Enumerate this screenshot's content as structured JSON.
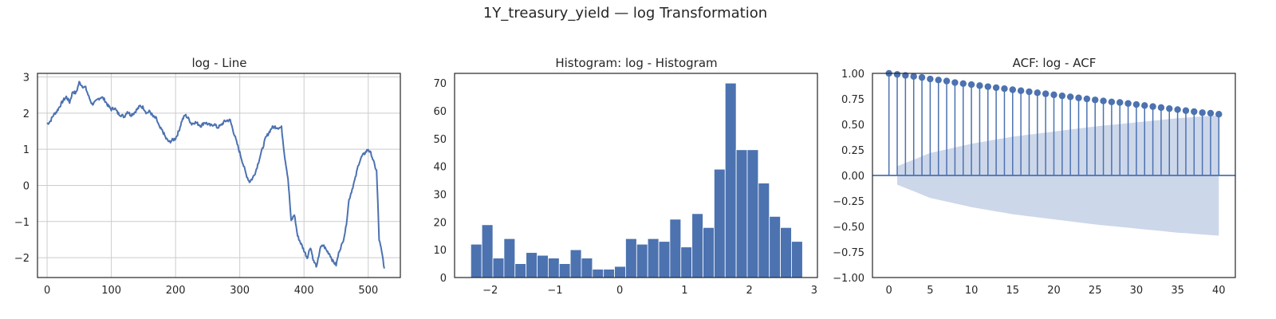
{
  "figure": {
    "suptitle": "1Y_treasury_yield — log Transformation"
  },
  "colors": {
    "series": "#4c72b0",
    "confidence_band": "#cdd7ea",
    "grid": "#cccccc",
    "text": "#262626"
  },
  "chart_data": [
    {
      "type": "line",
      "title": "log - Line",
      "xlabel": "",
      "ylabel": "",
      "xlim": [
        -15,
        550
      ],
      "ylim": [
        -2.55,
        3.1
      ],
      "xticks": [
        0,
        100,
        200,
        300,
        400,
        500
      ],
      "yticks": [
        -2,
        -1,
        0,
        1,
        2,
        3
      ],
      "grid": true,
      "anchors": [
        [
          0,
          1.7
        ],
        [
          5,
          1.78
        ],
        [
          10,
          1.95
        ],
        [
          15,
          2.05
        ],
        [
          20,
          2.2
        ],
        [
          25,
          2.35
        ],
        [
          30,
          2.45
        ],
        [
          35,
          2.3
        ],
        [
          40,
          2.6
        ],
        [
          45,
          2.55
        ],
        [
          50,
          2.85
        ],
        [
          55,
          2.75
        ],
        [
          60,
          2.7
        ],
        [
          65,
          2.45
        ],
        [
          70,
          2.25
        ],
        [
          75,
          2.3
        ],
        [
          80,
          2.4
        ],
        [
          85,
          2.45
        ],
        [
          90,
          2.35
        ],
        [
          95,
          2.2
        ],
        [
          100,
          2.1
        ],
        [
          105,
          2.15
        ],
        [
          110,
          2.0
        ],
        [
          115,
          1.95
        ],
        [
          120,
          1.9
        ],
        [
          125,
          2.05
        ],
        [
          130,
          1.95
        ],
        [
          135,
          2.0
        ],
        [
          140,
          2.1
        ],
        [
          145,
          2.2
        ],
        [
          150,
          2.15
        ],
        [
          155,
          2.0
        ],
        [
          160,
          2.05
        ],
        [
          165,
          1.9
        ],
        [
          170,
          1.85
        ],
        [
          175,
          1.6
        ],
        [
          180,
          1.5
        ],
        [
          185,
          1.3
        ],
        [
          190,
          1.2
        ],
        [
          195,
          1.25
        ],
        [
          200,
          1.3
        ],
        [
          205,
          1.5
        ],
        [
          210,
          1.8
        ],
        [
          215,
          1.95
        ],
        [
          220,
          1.85
        ],
        [
          225,
          1.7
        ],
        [
          230,
          1.75
        ],
        [
          235,
          1.7
        ],
        [
          240,
          1.65
        ],
        [
          245,
          1.75
        ],
        [
          250,
          1.7
        ],
        [
          255,
          1.65
        ],
        [
          260,
          1.7
        ],
        [
          265,
          1.6
        ],
        [
          270,
          1.65
        ],
        [
          275,
          1.75
        ],
        [
          280,
          1.8
        ],
        [
          285,
          1.8
        ],
        [
          290,
          1.5
        ],
        [
          295,
          1.2
        ],
        [
          300,
          0.9
        ],
        [
          305,
          0.6
        ],
        [
          310,
          0.3
        ],
        [
          315,
          0.1
        ],
        [
          320,
          0.2
        ],
        [
          325,
          0.4
        ],
        [
          330,
          0.7
        ],
        [
          335,
          1.0
        ],
        [
          340,
          1.3
        ],
        [
          345,
          1.45
        ],
        [
          350,
          1.6
        ],
        [
          355,
          1.62
        ],
        [
          360,
          1.6
        ],
        [
          365,
          1.6
        ],
        [
          370,
          0.8
        ],
        [
          375,
          0.2
        ],
        [
          378,
          -0.5
        ],
        [
          380,
          -1.0
        ],
        [
          385,
          -0.8
        ],
        [
          390,
          -1.4
        ],
        [
          395,
          -1.6
        ],
        [
          400,
          -1.8
        ],
        [
          405,
          -2.0
        ],
        [
          410,
          -1.7
        ],
        [
          415,
          -2.1
        ],
        [
          420,
          -2.25
        ],
        [
          425,
          -1.75
        ],
        [
          430,
          -1.65
        ],
        [
          435,
          -1.8
        ],
        [
          440,
          -1.9
        ],
        [
          445,
          -2.1
        ],
        [
          450,
          -2.2
        ],
        [
          455,
          -1.8
        ],
        [
          460,
          -1.6
        ],
        [
          465,
          -1.2
        ],
        [
          470,
          -0.4
        ],
        [
          475,
          -0.1
        ],
        [
          480,
          0.2
        ],
        [
          485,
          0.6
        ],
        [
          490,
          0.8
        ],
        [
          495,
          0.9
        ],
        [
          500,
          1.0
        ],
        [
          505,
          0.85
        ],
        [
          510,
          0.55
        ],
        [
          513,
          0.4
        ],
        [
          515,
          -0.5
        ],
        [
          517,
          -1.5
        ],
        [
          520,
          -1.75
        ],
        [
          523,
          -2.05
        ],
        [
          525,
          -2.3
        ]
      ]
    },
    {
      "type": "bar",
      "title": "Histogram: log - Histogram",
      "xlabel": "",
      "ylabel": "",
      "xlim": [
        -2.55,
        3.05
      ],
      "ylim": [
        0,
        73.5
      ],
      "xticks": [
        -2,
        -1,
        0,
        1,
        2,
        3
      ],
      "yticks": [
        0,
        10,
        20,
        30,
        40,
        50,
        60,
        70
      ],
      "bin_start": -2.3,
      "bin_end": 2.82,
      "values": [
        12,
        19,
        7,
        14,
        5,
        9,
        8,
        7,
        5,
        10,
        7,
        3,
        3,
        4,
        14,
        12,
        14,
        13,
        21,
        11,
        23,
        18,
        39,
        70,
        46,
        46,
        34,
        22,
        18,
        13
      ]
    },
    {
      "type": "scatter",
      "title": "ACF: log - ACF",
      "xlabel": "",
      "ylabel": "",
      "xlim": [
        -2,
        42
      ],
      "ylim": [
        -1.0,
        1.0
      ],
      "xticks": [
        0,
        5,
        10,
        15,
        20,
        25,
        30,
        35,
        40
      ],
      "yticks": [
        -1.0,
        -0.75,
        -0.5,
        -0.25,
        0.0,
        0.25,
        0.5,
        0.75,
        1.0
      ],
      "ytick_labels": [
        "−1.00",
        "−0.75",
        "−0.50",
        "−0.25",
        "0.00",
        "0.25",
        "0.50",
        "0.75",
        "1.00"
      ],
      "lags": [
        0,
        1,
        2,
        3,
        4,
        5,
        6,
        7,
        8,
        9,
        10,
        11,
        12,
        13,
        14,
        15,
        16,
        17,
        18,
        19,
        20,
        21,
        22,
        23,
        24,
        25,
        26,
        27,
        28,
        29,
        30,
        31,
        32,
        33,
        34,
        35,
        36,
        37,
        38,
        39,
        40
      ],
      "acf": [
        1.0,
        0.99,
        0.98,
        0.97,
        0.96,
        0.945,
        0.935,
        0.925,
        0.91,
        0.9,
        0.89,
        0.88,
        0.87,
        0.86,
        0.85,
        0.84,
        0.83,
        0.82,
        0.81,
        0.8,
        0.79,
        0.78,
        0.77,
        0.76,
        0.75,
        0.74,
        0.73,
        0.72,
        0.715,
        0.705,
        0.695,
        0.685,
        0.675,
        0.665,
        0.655,
        0.645,
        0.635,
        0.625,
        0.615,
        0.61,
        0.6
      ],
      "confint_lags": [
        1,
        5,
        10,
        15,
        20,
        25,
        30,
        35,
        40
      ],
      "confint_upper": [
        0.09,
        0.22,
        0.31,
        0.38,
        0.43,
        0.48,
        0.52,
        0.56,
        0.59
      ]
    }
  ]
}
